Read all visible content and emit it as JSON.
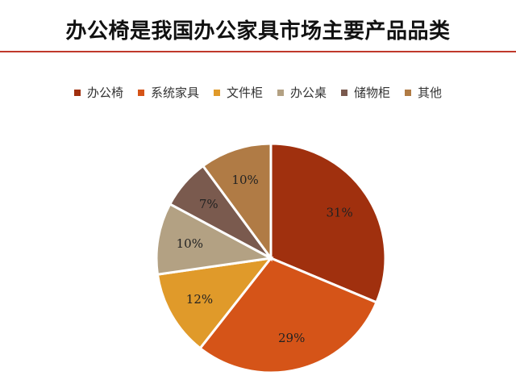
{
  "chart_data": {
    "type": "pie",
    "title": "办公椅是我国办公家具市场主要产品品类",
    "legend_position": "top",
    "slices": [
      {
        "name": "办公椅",
        "value": 31,
        "label": "31%",
        "color": "#A0300E"
      },
      {
        "name": "系统家具",
        "value": 29,
        "label": "29%",
        "color": "#D55418"
      },
      {
        "name": "文件柜",
        "value": 12,
        "label": "12%",
        "color": "#E09A2A"
      },
      {
        "name": "办公桌",
        "value": 10,
        "label": "10%",
        "color": "#B3A183"
      },
      {
        "name": "储物柜",
        "value": 7,
        "label": "7%",
        "color": "#7A5A4E"
      },
      {
        "name": "其他",
        "value": 10,
        "label": "10%",
        "color": "#B07B45"
      }
    ]
  }
}
